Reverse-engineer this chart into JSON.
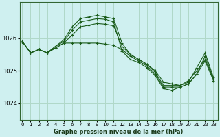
{
  "title": "Graphe pression niveau de la mer (hPa)",
  "background_color": "#cff0f0",
  "grid_color": "#b0d8c8",
  "line_color": "#1a5c1a",
  "x_ticks": [
    0,
    1,
    2,
    3,
    4,
    5,
    6,
    7,
    8,
    9,
    10,
    11,
    12,
    13,
    14,
    15,
    16,
    17,
    18,
    19,
    20,
    21,
    22,
    23
  ],
  "y_ticks": [
    1024,
    1025,
    1026
  ],
  "ylim": [
    1023.5,
    1027.1
  ],
  "xlim": [
    -0.3,
    23.5
  ],
  "series": [
    [
      1025.9,
      1025.55,
      1025.65,
      1025.55,
      1025.75,
      1025.95,
      1026.35,
      1026.6,
      1026.65,
      1026.7,
      1026.65,
      1026.6,
      1025.85,
      1025.5,
      1025.35,
      1025.2,
      1025.0,
      1024.65,
      1024.6,
      1024.55,
      1024.65,
      1025.1,
      1025.55,
      1024.8
    ],
    [
      1025.9,
      1025.55,
      1025.65,
      1025.55,
      1025.75,
      1025.9,
      1026.25,
      1026.5,
      1026.55,
      1026.6,
      1026.58,
      1026.5,
      1025.6,
      1025.35,
      1025.25,
      1025.1,
      1024.85,
      1024.45,
      1024.4,
      1024.5,
      1024.6,
      1024.9,
      1025.45,
      1024.75
    ],
    [
      1025.9,
      1025.55,
      1025.65,
      1025.55,
      1025.7,
      1025.85,
      1026.1,
      1026.35,
      1026.4,
      1026.45,
      1026.43,
      1026.38,
      1025.75,
      1025.5,
      1025.35,
      1025.2,
      1024.95,
      1024.55,
      1024.55,
      1024.55,
      1024.7,
      1025.0,
      1025.35,
      1024.75
    ],
    [
      1025.9,
      1025.55,
      1025.65,
      1025.55,
      1025.7,
      1025.85,
      1025.85,
      1025.85,
      1025.85,
      1025.85,
      1025.82,
      1025.78,
      1025.65,
      1025.45,
      1025.3,
      1025.15,
      1024.9,
      1024.5,
      1024.5,
      1024.5,
      1024.6,
      1024.9,
      1025.3,
      1024.7
    ]
  ]
}
